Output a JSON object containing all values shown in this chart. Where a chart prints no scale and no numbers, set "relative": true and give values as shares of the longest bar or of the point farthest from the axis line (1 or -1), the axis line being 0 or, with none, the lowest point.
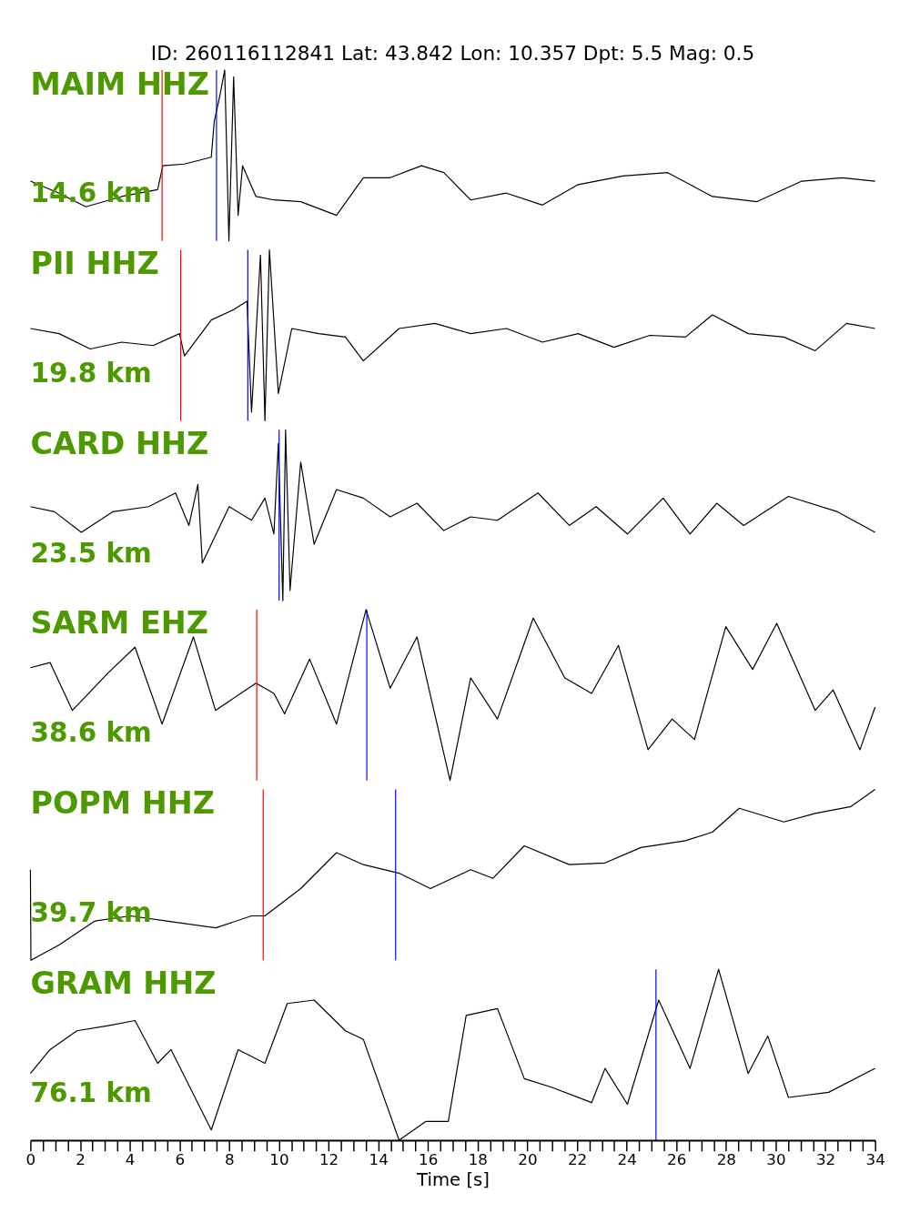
{
  "chart_data": [
    {
      "type": "line",
      "relative": true,
      "title": "MAIM HHZ",
      "subtitle": "14.6 km",
      "annotations": [
        "ID: 260116112841 Lat:  43.842 Lon:  10.357 Dpt:     5.5 Mag:   0.5"
      ],
      "xlim": [
        0,
        34
      ],
      "tick_labels": false,
      "series": [
        {
          "color": "#000000",
          "x": [
            0,
            1.15,
            2.23,
            3.67,
            5.12,
            5.33,
            6.2,
            7.28,
            7.4,
            7.64,
            7.82,
            7.99,
            8.18,
            8.36,
            8.54,
            9.08,
            9.8,
            10.88,
            12.32,
            13.4,
            14.48,
            15.74,
            16.64,
            17.72,
            19.16,
            20.61,
            22.05,
            23.85,
            25.65,
            27.45,
            29.25,
            31.05,
            32.67,
            34
          ],
          "values": [
            0.35,
            0.28,
            0.2,
            0.26,
            0.3,
            0.44,
            0.45,
            0.49,
            0.7,
            0.86,
            1.0,
            0,
            0.96,
            0.15,
            0.44,
            0.26,
            0.24,
            0.23,
            0.15,
            0.37,
            0.37,
            0.44,
            0.4,
            0.24,
            0.28,
            0.21,
            0.33,
            0.38,
            0.4,
            0.26,
            0.23,
            0.35,
            0.37,
            0.35
          ]
        }
      ],
      "ref_lines": [
        {
          "axis": "x",
          "value": 5.3,
          "label": null,
          "color": "#ff0000"
        },
        {
          "axis": "x",
          "value": 7.49,
          "label": null,
          "color": "#0000ff"
        }
      ]
    },
    {
      "type": "line",
      "relative": true,
      "title": "PII HHZ",
      "subtitle": "19.8 km",
      "xlim": [
        0,
        34
      ],
      "tick_labels": false,
      "series": [
        {
          "color": "#000000",
          "x": [
            0,
            1.15,
            2.41,
            3.67,
            4.94,
            6.0,
            6.2,
            7.28,
            8.18,
            8.72,
            8.9,
            9.26,
            9.44,
            9.62,
            9.98,
            10.52,
            11.6,
            12.68,
            13.4,
            14.84,
            16.28,
            17.72,
            19.16,
            20.61,
            22.05,
            23.49,
            24.93,
            26.37,
            27.45,
            28.89,
            30.33,
            31.59,
            32.85,
            34
          ],
          "values": [
            0.54,
            0.51,
            0.42,
            0.46,
            0.44,
            0.51,
            0.38,
            0.59,
            0.65,
            0.7,
            0.05,
            0.97,
            0,
            1.0,
            0.16,
            0.54,
            0.51,
            0.49,
            0.35,
            0.54,
            0.57,
            0.51,
            0.54,
            0.46,
            0.51,
            0.43,
            0.5,
            0.49,
            0.62,
            0.51,
            0.49,
            0.41,
            0.57,
            0.54
          ]
        }
      ],
      "ref_lines": [
        {
          "axis": "x",
          "value": 6.05,
          "label": null,
          "color": "#ff0000"
        },
        {
          "axis": "x",
          "value": 8.75,
          "label": null,
          "color": "#0000ff"
        }
      ]
    },
    {
      "type": "line",
      "relative": true,
      "title": "CARD HHZ",
      "subtitle": "23.5 km",
      "xlim": [
        0,
        34
      ],
      "tick_labels": false,
      "series": [
        {
          "color": "#000000",
          "x": [
            0,
            0.97,
            2.05,
            3.31,
            4.76,
            5.84,
            6.38,
            6.74,
            6.92,
            8.0,
            8.9,
            9.44,
            9.8,
            9.98,
            10.16,
            10.27,
            10.45,
            10.88,
            11.42,
            12.32,
            13.4,
            14.48,
            15.56,
            16.64,
            17.72,
            18.8,
            20.43,
            21.69,
            22.77,
            24.03,
            25.47,
            26.55,
            27.63,
            28.71,
            30.51,
            32.49,
            34
          ],
          "values": [
            0.55,
            0.52,
            0.4,
            0.52,
            0.55,
            0.63,
            0.44,
            0.68,
            0.22,
            0.55,
            0.47,
            0.6,
            0.39,
            0.92,
            0,
            1.0,
            0.06,
            0.81,
            0.33,
            0.65,
            0.6,
            0.49,
            0.57,
            0.41,
            0.49,
            0.47,
            0.63,
            0.44,
            0.55,
            0.39,
            0.6,
            0.39,
            0.57,
            0.44,
            0.61,
            0.52,
            0.4
          ]
        }
      ],
      "ref_lines": [
        {
          "axis": "x",
          "value": 10.01,
          "label": null,
          "color": "#0000ff"
        }
      ]
    },
    {
      "type": "line",
      "relative": true,
      "title": "SARM EHZ",
      "subtitle": "38.6 km",
      "xlim": [
        0,
        34
      ],
      "tick_labels": false,
      "series": [
        {
          "color": "#000000",
          "x": [
            0,
            0.79,
            1.69,
            3.13,
            4.21,
            5.3,
            6.56,
            7.45,
            9.08,
            9.8,
            10.23,
            11.24,
            12.32,
            13.51,
            14.48,
            15.56,
            16.89,
            17.72,
            18.8,
            20.24,
            21.51,
            22.59,
            23.67,
            24.86,
            25.83,
            26.73,
            27.99,
            29.07,
            30.04,
            31.59,
            32.31,
            33.39,
            34
          ],
          "values": [
            0.66,
            0.69,
            0.41,
            0.63,
            0.78,
            0.33,
            0.84,
            0.41,
            0.57,
            0.51,
            0.39,
            0.71,
            0.33,
            1.0,
            0.54,
            0.84,
            0,
            0.6,
            0.36,
            0.95,
            0.6,
            0.51,
            0.79,
            0.18,
            0.36,
            0.24,
            0.9,
            0.65,
            0.92,
            0.41,
            0.53,
            0.18,
            0.43
          ]
        }
      ],
      "ref_lines": [
        {
          "axis": "x",
          "value": 9.11,
          "label": null,
          "color": "#ff0000"
        },
        {
          "axis": "x",
          "value": 13.54,
          "label": null,
          "color": "#0000ff"
        }
      ]
    },
    {
      "type": "line",
      "relative": true,
      "title": "POPM HHZ",
      "subtitle": "39.7 km",
      "xlim": [
        0,
        34
      ],
      "tick_labels": false,
      "series": [
        {
          "color": "#000000",
          "x": [
            0,
            0.02,
            1.15,
            2.59,
            4.03,
            5.48,
            7.46,
            8.9,
            9.44,
            10.88,
            12.32,
            13.4,
            14.84,
            16.1,
            17.72,
            18.62,
            19.88,
            21.69,
            23.13,
            24.57,
            26.37,
            27.45,
            28.53,
            30.33,
            31.59,
            33.03,
            34
          ],
          "values": [
            0.53,
            0,
            0.09,
            0.23,
            0.26,
            0.23,
            0.19,
            0.26,
            0.26,
            0.42,
            0.63,
            0.56,
            0.51,
            0.42,
            0.53,
            0.48,
            0.67,
            0.56,
            0.57,
            0.66,
            0.7,
            0.75,
            0.89,
            0.81,
            0.86,
            0.9,
            1.0
          ]
        }
      ],
      "ref_lines": [
        {
          "axis": "x",
          "value": 9.37,
          "label": null,
          "color": "#ff0000"
        },
        {
          "axis": "x",
          "value": 14.7,
          "label": null,
          "color": "#0000ff"
        }
      ]
    },
    {
      "type": "line",
      "relative": true,
      "title": "GRAM HHZ",
      "subtitle": "76.1 km",
      "xlabel": "Time [s]",
      "xlim": [
        0,
        34
      ],
      "tick_labels": "x",
      "xticks": [
        0,
        {
          "value": 0.5,
          "label": null
        },
        {
          "value": 1,
          "label": null
        },
        {
          "value": 1.5,
          "label": null
        },
        2,
        {
          "value": 2.5,
          "label": null
        },
        {
          "value": 3,
          "label": null
        },
        {
          "value": 3.5,
          "label": null
        },
        4,
        {
          "value": 4.5,
          "label": null
        },
        {
          "value": 5,
          "label": null
        },
        {
          "value": 5.5,
          "label": null
        },
        6,
        {
          "value": 6.5,
          "label": null
        },
        {
          "value": 7,
          "label": null
        },
        {
          "value": 7.5,
          "label": null
        },
        8,
        {
          "value": 8.5,
          "label": null
        },
        {
          "value": 9,
          "label": null
        },
        {
          "value": 9.5,
          "label": null
        },
        10,
        {
          "value": 10.5,
          "label": null
        },
        {
          "value": 11,
          "label": null
        },
        {
          "value": 11.5,
          "label": null
        },
        12,
        {
          "value": 12.5,
          "label": null
        },
        {
          "value": 13,
          "label": null
        },
        {
          "value": 13.5,
          "label": null
        },
        14,
        {
          "value": 14.5,
          "label": null
        },
        {
          "value": 15,
          "label": null
        },
        {
          "value": 15.5,
          "label": null
        },
        16,
        {
          "value": 16.5,
          "label": null
        },
        {
          "value": 17,
          "label": null
        },
        {
          "value": 17.5,
          "label": null
        },
        18,
        {
          "value": 18.5,
          "label": null
        },
        {
          "value": 19,
          "label": null
        },
        {
          "value": 19.5,
          "label": null
        },
        20,
        {
          "value": 20.5,
          "label": null
        },
        {
          "value": 21,
          "label": null
        },
        {
          "value": 21.5,
          "label": null
        },
        22,
        {
          "value": 22.5,
          "label": null
        },
        {
          "value": 23,
          "label": null
        },
        {
          "value": 23.5,
          "label": null
        },
        24,
        {
          "value": 24.5,
          "label": null
        },
        {
          "value": 25,
          "label": null
        },
        {
          "value": 25.5,
          "label": null
        },
        26,
        {
          "value": 26.5,
          "label": null
        },
        {
          "value": 27,
          "label": null
        },
        {
          "value": 27.5,
          "label": null
        },
        28,
        {
          "value": 28.5,
          "label": null
        },
        {
          "value": 29,
          "label": null
        },
        {
          "value": 29.5,
          "label": null
        },
        30,
        {
          "value": 30.5,
          "label": null
        },
        {
          "value": 31,
          "label": null
        },
        {
          "value": 31.5,
          "label": null
        },
        32,
        {
          "value": 32.5,
          "label": null
        },
        {
          "value": 33,
          "label": null
        },
        {
          "value": 33.5,
          "label": null
        },
        34
      ],
      "series": [
        {
          "color": "#000000",
          "x": [
            0,
            0.79,
            1.87,
            3.13,
            4.21,
            5.12,
            5.66,
            7.28,
            8.36,
            9.44,
            10.34,
            11.42,
            12.68,
            13.4,
            14.84,
            15.92,
            16.82,
            17.54,
            18.8,
            19.88,
            20.97,
            22.59,
            23.13,
            24.03,
            25.29,
            26.55,
            27.7,
            28.89,
            29.68,
            30.51,
            32.13,
            34
          ],
          "values": [
            0.39,
            0.53,
            0.64,
            0.67,
            0.7,
            0.45,
            0.53,
            0.06,
            0.53,
            0.45,
            0.8,
            0.82,
            0.64,
            0.59,
            0,
            0.11,
            0.11,
            0.73,
            0.77,
            0.36,
            0.31,
            0.22,
            0.42,
            0.21,
            0.82,
            0.42,
            1.0,
            0.39,
            0.61,
            0.25,
            0.28,
            0.42
          ]
        }
      ],
      "ref_lines": [
        {
          "axis": "x",
          "value": 25.18,
          "label": null,
          "color": "#0000ff"
        }
      ]
    }
  ]
}
